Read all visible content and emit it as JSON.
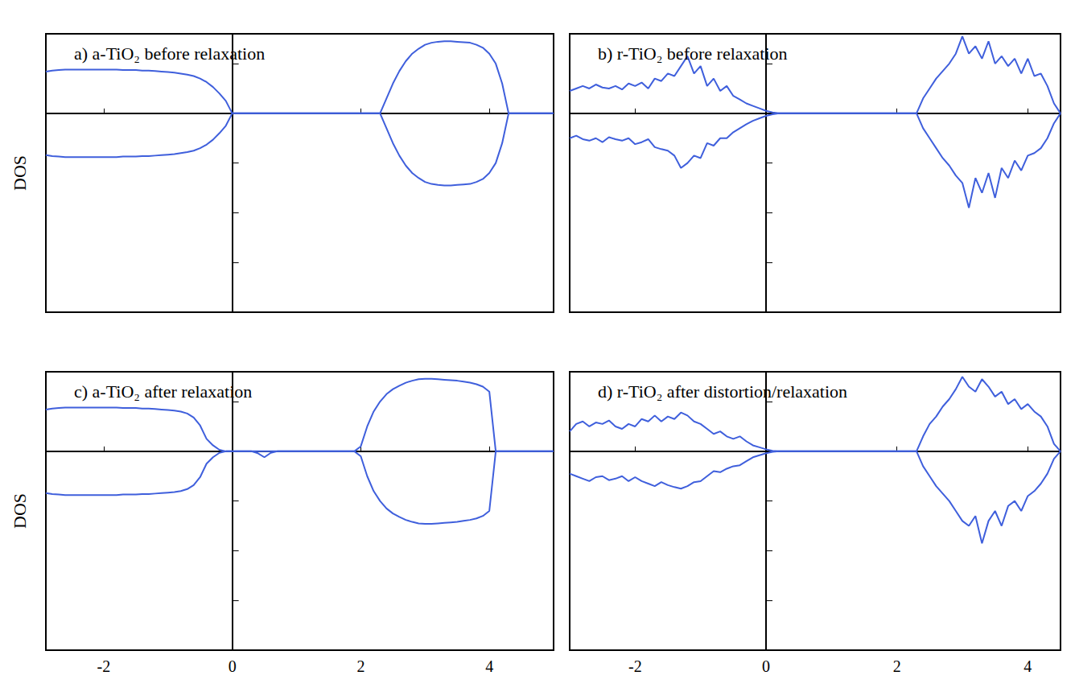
{
  "chart_data": [
    {
      "type": "line",
      "title": "a) a-TiO₂ before relaxation",
      "ylabel": "DOS",
      "xlim": [
        -2.9,
        5
      ],
      "xticks": [
        -2,
        0,
        2,
        4
      ],
      "ylim": [
        -4,
        1.6
      ],
      "yticks": [
        -3,
        -2,
        -1,
        0,
        1
      ],
      "grid": false,
      "tick_labels": false,
      "x": [
        -2.9,
        -2.8,
        -2.7,
        -2.6,
        -2.5,
        -2.4,
        -2.3,
        -2.2,
        -2.1,
        -2,
        -1.9,
        -1.8,
        -1.7,
        -1.6,
        -1.5,
        -1.4,
        -1.3,
        -1.2,
        -1.1,
        -1,
        -0.9,
        -0.8,
        -0.7,
        -0.6,
        -0.5,
        -0.4,
        -0.3,
        -0.2,
        -0.1,
        0,
        0.1,
        0.2,
        0.3,
        0.4,
        0.5,
        0.6,
        0.7,
        0.8,
        0.9,
        1,
        1.1,
        1.2,
        1.3,
        1.4,
        1.5,
        1.6,
        1.7,
        1.8,
        1.9,
        2,
        2.1,
        2.2,
        2.3,
        2.4,
        2.5,
        2.6,
        2.7,
        2.8,
        2.9,
        3,
        3.1,
        3.2,
        3.3,
        3.4,
        3.5,
        3.6,
        3.7,
        3.8,
        3.9,
        4,
        4.1,
        4.2,
        4.3,
        4.4,
        4.5,
        4.6,
        4.7,
        4.8,
        4.9,
        5
      ],
      "series": [
        {
          "color": "#3f5fdc",
          "values": [
            0.84,
            0.86,
            0.87,
            0.88,
            0.88,
            0.88,
            0.88,
            0.88,
            0.88,
            0.88,
            0.88,
            0.88,
            0.87,
            0.87,
            0.87,
            0.86,
            0.86,
            0.85,
            0.84,
            0.83,
            0.82,
            0.8,
            0.78,
            0.75,
            0.7,
            0.63,
            0.53,
            0.4,
            0.25,
            0,
            0,
            0,
            0,
            0,
            0,
            0,
            0,
            0,
            0,
            0,
            0,
            0,
            0,
            0,
            0,
            0,
            0,
            0,
            0,
            0,
            0,
            0,
            0,
            0.3,
            0.6,
            0.85,
            1.05,
            1.2,
            1.3,
            1.38,
            1.42,
            1.44,
            1.45,
            1.45,
            1.44,
            1.43,
            1.42,
            1.38,
            1.32,
            1.2,
            1,
            0.6,
            0,
            0,
            0,
            0,
            0,
            0,
            0,
            0
          ]
        },
        {
          "color": "#3f5fdc",
          "values": [
            -0.84,
            -0.86,
            -0.87,
            -0.88,
            -0.88,
            -0.88,
            -0.88,
            -0.88,
            -0.88,
            -0.88,
            -0.88,
            -0.88,
            -0.87,
            -0.87,
            -0.87,
            -0.86,
            -0.86,
            -0.85,
            -0.84,
            -0.83,
            -0.82,
            -0.8,
            -0.78,
            -0.75,
            -0.7,
            -0.63,
            -0.53,
            -0.4,
            -0.25,
            0,
            0,
            0,
            0,
            0,
            0,
            0,
            0,
            0,
            0,
            0,
            0,
            0,
            0,
            0,
            0,
            0,
            0,
            0,
            0,
            0,
            0,
            0,
            0,
            -0.3,
            -0.6,
            -0.85,
            -1.05,
            -1.2,
            -1.3,
            -1.38,
            -1.42,
            -1.44,
            -1.45,
            -1.45,
            -1.44,
            -1.43,
            -1.42,
            -1.38,
            -1.32,
            -1.2,
            -1,
            -0.6,
            0,
            0,
            0,
            0,
            0,
            0,
            0,
            0
          ]
        }
      ]
    },
    {
      "type": "line",
      "title": "b) r-TiO₂ before relaxation",
      "xlim": [
        -3,
        4.5
      ],
      "xticks": [
        -2,
        0,
        2,
        4
      ],
      "ylim": [
        -4,
        1.6
      ],
      "yticks": [
        -3,
        -2,
        -1,
        0,
        1
      ],
      "grid": false,
      "tick_labels": false,
      "x": [
        -3,
        -2.9,
        -2.8,
        -2.7,
        -2.6,
        -2.5,
        -2.4,
        -2.3,
        -2.2,
        -2.1,
        -2,
        -1.9,
        -1.8,
        -1.7,
        -1.6,
        -1.5,
        -1.4,
        -1.3,
        -1.2,
        -1.1,
        -1,
        -0.9,
        -0.8,
        -0.7,
        -0.6,
        -0.5,
        -0.4,
        -0.3,
        -0.2,
        -0.1,
        0,
        0.1,
        0.2,
        0.3,
        0.4,
        0.5,
        0.6,
        0.7,
        0.8,
        0.9,
        1,
        1.1,
        1.2,
        1.3,
        1.4,
        1.5,
        1.6,
        1.7,
        1.8,
        1.9,
        2,
        2.1,
        2.2,
        2.3,
        2.4,
        2.5,
        2.6,
        2.7,
        2.8,
        2.9,
        3,
        3.1,
        3.2,
        3.3,
        3.4,
        3.5,
        3.6,
        3.7,
        3.8,
        3.9,
        4,
        4.1,
        4.2,
        4.3,
        4.4,
        4.5
      ],
      "series": [
        {
          "color": "#3f5fdc",
          "values": [
            0.45,
            0.5,
            0.55,
            0.5,
            0.58,
            0.52,
            0.5,
            0.55,
            0.48,
            0.6,
            0.55,
            0.62,
            0.5,
            0.7,
            0.65,
            0.8,
            0.75,
            0.95,
            1.15,
            0.8,
            0.95,
            0.55,
            0.7,
            0.45,
            0.55,
            0.35,
            0.28,
            0.2,
            0.15,
            0.1,
            0.05,
            0.02,
            0,
            0,
            0,
            0,
            0,
            0,
            0,
            0,
            0,
            0,
            0,
            0,
            0,
            0,
            0,
            0,
            0,
            0,
            0,
            0,
            0,
            0,
            0.3,
            0.5,
            0.7,
            0.85,
            1,
            1.2,
            1.55,
            1.2,
            1.35,
            1.1,
            1.45,
            1,
            1.15,
            0.95,
            1.1,
            0.8,
            1.1,
            0.75,
            0.8,
            0.55,
            0.2,
            0
          ]
        },
        {
          "color": "#3f5fdc",
          "values": [
            -0.5,
            -0.45,
            -0.52,
            -0.55,
            -0.5,
            -0.58,
            -0.48,
            -0.52,
            -0.55,
            -0.5,
            -0.62,
            -0.58,
            -0.52,
            -0.68,
            -0.72,
            -0.75,
            -0.85,
            -1.1,
            -1,
            -0.85,
            -0.9,
            -0.6,
            -0.65,
            -0.5,
            -0.5,
            -0.38,
            -0.3,
            -0.22,
            -0.15,
            -0.1,
            -0.05,
            -0.02,
            0,
            0,
            0,
            0,
            0,
            0,
            0,
            0,
            0,
            0,
            0,
            0,
            0,
            0,
            0,
            0,
            0,
            0,
            0,
            0,
            0,
            0,
            -0.3,
            -0.5,
            -0.7,
            -0.9,
            -1.05,
            -1.25,
            -1.4,
            -1.9,
            -1.3,
            -1.6,
            -1.2,
            -1.7,
            -1.1,
            -1.3,
            -0.95,
            -1.15,
            -0.85,
            -0.8,
            -0.7,
            -0.5,
            -0.2,
            0
          ]
        }
      ]
    },
    {
      "type": "line",
      "title": "c) a-TiO₂ after relaxation",
      "ylabel": "DOS",
      "xlim": [
        -2.9,
        5
      ],
      "xticks": [
        -2,
        0,
        2,
        4
      ],
      "ylim": [
        -4,
        1.6
      ],
      "yticks": [
        -3,
        -2,
        -1,
        0,
        1
      ],
      "grid": false,
      "tick_labels": "x",
      "x": [
        -2.9,
        -2.8,
        -2.7,
        -2.6,
        -2.5,
        -2.4,
        -2.3,
        -2.2,
        -2.1,
        -2,
        -1.9,
        -1.8,
        -1.7,
        -1.6,
        -1.5,
        -1.4,
        -1.3,
        -1.2,
        -1.1,
        -1,
        -0.9,
        -0.8,
        -0.7,
        -0.6,
        -0.5,
        -0.4,
        -0.3,
        -0.2,
        -0.1,
        0,
        0.1,
        0.2,
        0.3,
        0.4,
        0.5,
        0.6,
        0.7,
        0.8,
        0.9,
        1,
        1.1,
        1.2,
        1.3,
        1.4,
        1.5,
        1.6,
        1.7,
        1.8,
        1.9,
        2,
        2.1,
        2.2,
        2.3,
        2.4,
        2.5,
        2.6,
        2.7,
        2.8,
        2.9,
        3,
        3.1,
        3.2,
        3.3,
        3.4,
        3.5,
        3.6,
        3.7,
        3.8,
        3.9,
        4,
        4.1,
        4.2,
        4.3,
        4.4,
        4.5,
        4.6,
        4.7,
        4.8,
        4.9,
        5
      ],
      "series": [
        {
          "color": "#3f5fdc",
          "values": [
            0.84,
            0.86,
            0.87,
            0.88,
            0.88,
            0.88,
            0.88,
            0.88,
            0.88,
            0.88,
            0.88,
            0.88,
            0.87,
            0.87,
            0.87,
            0.86,
            0.86,
            0.85,
            0.84,
            0.83,
            0.82,
            0.8,
            0.76,
            0.68,
            0.52,
            0.25,
            0.12,
            0.03,
            0,
            0,
            0,
            0,
            0,
            0,
            0,
            0,
            0,
            0,
            0,
            0,
            0,
            0,
            0,
            0,
            0,
            0,
            0,
            0,
            0,
            0.1,
            0.5,
            0.8,
            1,
            1.15,
            1.25,
            1.32,
            1.38,
            1.42,
            1.45,
            1.46,
            1.46,
            1.45,
            1.44,
            1.43,
            1.42,
            1.4,
            1.38,
            1.35,
            1.3,
            1.2,
            0,
            0,
            0,
            0,
            0,
            0,
            0,
            0,
            0,
            0
          ]
        },
        {
          "color": "#3f5fdc",
          "values": [
            -0.84,
            -0.86,
            -0.87,
            -0.88,
            -0.88,
            -0.88,
            -0.88,
            -0.88,
            -0.88,
            -0.88,
            -0.88,
            -0.88,
            -0.87,
            -0.87,
            -0.87,
            -0.86,
            -0.86,
            -0.85,
            -0.84,
            -0.83,
            -0.82,
            -0.8,
            -0.76,
            -0.68,
            -0.52,
            -0.25,
            -0.12,
            -0.03,
            0,
            0,
            0,
            0,
            0,
            -0.04,
            -0.12,
            -0.03,
            0,
            0,
            0,
            0,
            0,
            0,
            0,
            0,
            0,
            0,
            0,
            0,
            0,
            -0.1,
            -0.5,
            -0.8,
            -1,
            -1.15,
            -1.25,
            -1.32,
            -1.38,
            -1.42,
            -1.45,
            -1.46,
            -1.46,
            -1.45,
            -1.44,
            -1.43,
            -1.42,
            -1.4,
            -1.38,
            -1.35,
            -1.3,
            -1.2,
            0,
            0,
            0,
            0,
            0,
            0,
            0,
            0,
            0,
            0
          ]
        }
      ]
    },
    {
      "type": "line",
      "title": "d) r-TiO₂ after distortion/relaxation",
      "xlim": [
        -3,
        4.5
      ],
      "xticks": [
        -2,
        0,
        2,
        4
      ],
      "ylim": [
        -4,
        1.6
      ],
      "yticks": [
        -3,
        -2,
        -1,
        0,
        1
      ],
      "grid": false,
      "tick_labels": "x",
      "x": [
        -3,
        -2.9,
        -2.8,
        -2.7,
        -2.6,
        -2.5,
        -2.4,
        -2.3,
        -2.2,
        -2.1,
        -2,
        -1.9,
        -1.8,
        -1.7,
        -1.6,
        -1.5,
        -1.4,
        -1.3,
        -1.2,
        -1.1,
        -1,
        -0.9,
        -0.8,
        -0.7,
        -0.6,
        -0.5,
        -0.4,
        -0.3,
        -0.2,
        -0.1,
        0,
        0.1,
        0.2,
        0.3,
        0.4,
        0.5,
        0.6,
        0.7,
        0.8,
        0.9,
        1,
        1.1,
        1.2,
        1.3,
        1.4,
        1.5,
        1.6,
        1.7,
        1.8,
        1.9,
        2,
        2.1,
        2.2,
        2.3,
        2.4,
        2.5,
        2.6,
        2.7,
        2.8,
        2.9,
        3,
        3.1,
        3.2,
        3.3,
        3.4,
        3.5,
        3.6,
        3.7,
        3.8,
        3.9,
        4,
        4.1,
        4.2,
        4.3,
        4.4,
        4.5
      ],
      "series": [
        {
          "color": "#3f5fdc",
          "values": [
            0.4,
            0.55,
            0.6,
            0.5,
            0.58,
            0.55,
            0.62,
            0.5,
            0.45,
            0.55,
            0.5,
            0.65,
            0.6,
            0.72,
            0.6,
            0.7,
            0.65,
            0.78,
            0.72,
            0.6,
            0.55,
            0.45,
            0.35,
            0.4,
            0.3,
            0.25,
            0.3,
            0.2,
            0.12,
            0.08,
            0.04,
            0.01,
            0,
            0,
            0,
            0,
            0,
            0,
            0,
            0,
            0,
            0,
            0,
            0,
            0,
            0,
            0,
            0,
            0,
            0,
            0,
            0,
            0,
            0,
            0.3,
            0.55,
            0.7,
            0.9,
            1.05,
            1.25,
            1.5,
            1.3,
            1.2,
            1.45,
            1.3,
            1.1,
            1.2,
            0.95,
            1.05,
            0.85,
            0.95,
            0.8,
            0.7,
            0.5,
            0.15,
            0
          ]
        },
        {
          "color": "#3f5fdc",
          "values": [
            -0.45,
            -0.5,
            -0.55,
            -0.6,
            -0.52,
            -0.5,
            -0.58,
            -0.55,
            -0.5,
            -0.6,
            -0.52,
            -0.6,
            -0.65,
            -0.7,
            -0.62,
            -0.68,
            -0.72,
            -0.75,
            -0.7,
            -0.62,
            -0.6,
            -0.5,
            -0.4,
            -0.42,
            -0.35,
            -0.3,
            -0.28,
            -0.2,
            -0.12,
            -0.08,
            -0.04,
            -0.01,
            0,
            0,
            0,
            0,
            0,
            0,
            0,
            0,
            0,
            0,
            0,
            0,
            0,
            0,
            0,
            0,
            0,
            0,
            0,
            0,
            0,
            0,
            -0.3,
            -0.5,
            -0.7,
            -0.85,
            -1,
            -1.2,
            -1.4,
            -1.5,
            -1.3,
            -1.85,
            -1.4,
            -1.2,
            -1.5,
            -1.1,
            -1,
            -1.2,
            -0.9,
            -0.8,
            -0.65,
            -0.45,
            -0.15,
            0
          ]
        }
      ]
    }
  ]
}
